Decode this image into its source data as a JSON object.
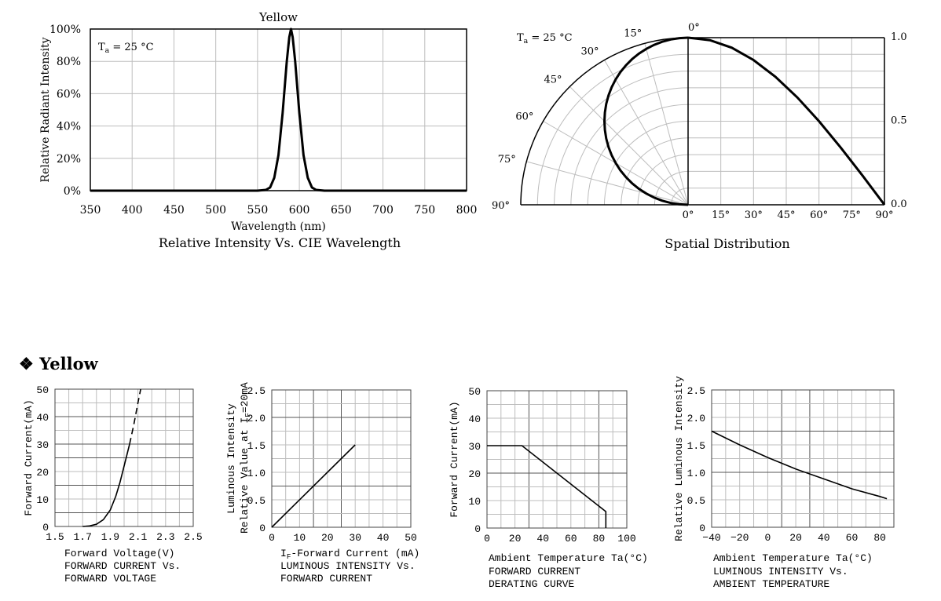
{
  "section_heading": {
    "bullet": "❖",
    "text": "Yellow"
  },
  "chart_data": [
    {
      "id": "spectrum",
      "type": "line",
      "title": "Yellow",
      "caption": "Relative Intensity Vs. CIE Wavelength",
      "xlabel": "Wavelength (nm)",
      "ylabel": "Relative Radiant Intensity",
      "annotation": {
        "main": "T",
        "sub": "a",
        "rest": " = 25 °C"
      },
      "xlim": [
        350,
        800
      ],
      "ylim": [
        0,
        100
      ],
      "xticks": [
        "350",
        "400",
        "450",
        "500",
        "550",
        "600",
        "650",
        "700",
        "750",
        "800"
      ],
      "yticks": [
        "0%",
        "20%",
        "40%",
        "60%",
        "80%",
        "100%"
      ],
      "grid": true,
      "peak": 590,
      "series": [
        {
          "x": [
            350,
            550,
            560,
            565,
            570,
            575,
            580,
            585,
            588,
            590,
            592,
            595,
            600,
            605,
            610,
            615,
            620,
            630,
            800
          ],
          "y": [
            0,
            0,
            0.5,
            2,
            8,
            22,
            48,
            80,
            95,
            100,
            95,
            80,
            48,
            22,
            8,
            2,
            0.5,
            0,
            0
          ]
        }
      ]
    },
    {
      "id": "spatial",
      "type": "polar",
      "caption": "Spatial Distribution",
      "annotation": {
        "main": "T",
        "sub": "a",
        "rest": " = 25 °C"
      },
      "angle_labels": [
        "0°",
        "15°",
        "30°",
        "45°",
        "60°",
        "75°",
        "90°"
      ],
      "xticks": [
        "0°",
        "15°",
        "30°",
        "45°",
        "60°",
        "75°",
        "90°"
      ],
      "yticks": [
        "0.0",
        "0.5",
        "1.0"
      ],
      "ylim": [
        0,
        1.0
      ],
      "series": [
        {
          "angle": [
            0,
            10,
            20,
            30,
            40,
            50,
            60,
            70,
            80,
            90
          ],
          "value": [
            1.0,
            0.985,
            0.94,
            0.866,
            0.766,
            0.643,
            0.5,
            0.342,
            0.174,
            0.0
          ]
        }
      ]
    },
    {
      "id": "iv",
      "type": "line",
      "xlabel": "Forward Voltage(V)",
      "ylabel": "Forward Current(mA)",
      "caption_lines": [
        "FORWARD CURRENT Vs.",
        "FORWARD VOLTAGE"
      ],
      "xlim": [
        1.5,
        2.5
      ],
      "ylim": [
        0,
        50
      ],
      "xticks": [
        "1.5",
        "1.7",
        "1.9",
        "2.1",
        "2.3",
        "2.5"
      ],
      "yticks": [
        "0",
        "10",
        "20",
        "30",
        "40",
        "50"
      ],
      "grid": true,
      "series": [
        {
          "style": "solid",
          "x": [
            1.7,
            1.75,
            1.8,
            1.85,
            1.9,
            1.94,
            1.97,
            2.0,
            2.02,
            2.04
          ],
          "y": [
            0,
            0.2,
            0.8,
            2.5,
            6,
            11,
            16,
            22,
            26,
            30
          ]
        },
        {
          "style": "dashed",
          "x": [
            2.04,
            2.07,
            2.1,
            2.12
          ],
          "y": [
            30,
            37,
            45,
            50
          ]
        }
      ]
    },
    {
      "id": "lum_current",
      "type": "line",
      "xlabel_parts": {
        "pre": "I",
        "sub": "F",
        "post": "-Forward Current (mA)"
      },
      "ylabel_lines": [
        "Luminous Intensity",
        "Relative Value at I",
        "F",
        "=20mA"
      ],
      "caption_lines": [
        "LUMINOUS INTENSITY Vs.",
        "FORWARD CURRENT"
      ],
      "xlim": [
        0,
        50
      ],
      "ylim": [
        0,
        2.5
      ],
      "xticks": [
        "0",
        "10",
        "20",
        "30",
        "40",
        "50"
      ],
      "yticks": [
        "0",
        "0.5",
        "1.0",
        "1.5",
        "2.0",
        "2.5"
      ],
      "grid": true,
      "series": [
        {
          "x": [
            0,
            30
          ],
          "y": [
            0,
            1.5
          ]
        }
      ]
    },
    {
      "id": "derating",
      "type": "line",
      "xlabel": "Ambient Temperature Ta(°C)",
      "ylabel": "Forward Current(mA)",
      "caption_lines": [
        "FORWARD CURRENT",
        "DERATING CURVE"
      ],
      "xlim": [
        0,
        100
      ],
      "ylim": [
        0,
        50
      ],
      "xticks": [
        "0",
        "20",
        "40",
        "60",
        "80",
        "100"
      ],
      "yticks": [
        "0",
        "10",
        "20",
        "30",
        "40",
        "50"
      ],
      "grid": true,
      "series": [
        {
          "x": [
            0,
            25,
            85,
            85
          ],
          "y": [
            30,
            30,
            6,
            0
          ]
        }
      ]
    },
    {
      "id": "lum_temp",
      "type": "line",
      "xlabel": "Ambient Temperature Ta(°C)",
      "ylabel": "Relative Luminous Intensity",
      "caption_lines": [
        "LUMINOUS INTENSITY Vs.",
        "AMBIENT TEMPERATURE"
      ],
      "xlim": [
        -40,
        90
      ],
      "ylim": [
        0,
        2.5
      ],
      "xticks": [
        "−40",
        "−20",
        "0",
        "20",
        "40",
        "60",
        "80"
      ],
      "yticks": [
        "0",
        "0.5",
        "1.0",
        "1.5",
        "2.0",
        "2.5"
      ],
      "grid": true,
      "series": [
        {
          "x": [
            -40,
            -20,
            0,
            20,
            40,
            60,
            80,
            85
          ],
          "y": [
            1.75,
            1.5,
            1.27,
            1.06,
            0.88,
            0.7,
            0.56,
            0.52
          ]
        }
      ]
    }
  ]
}
